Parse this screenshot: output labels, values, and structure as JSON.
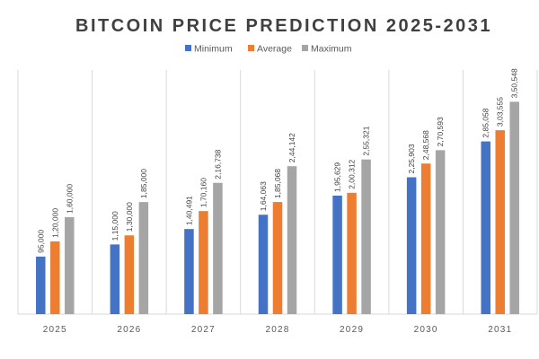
{
  "chart_data": {
    "type": "bar",
    "title": "BITCOIN PRICE PREDICTION 2025-2031",
    "categories": [
      "2025",
      "2026",
      "2027",
      "2028",
      "2029",
      "2030",
      "2031"
    ],
    "series": [
      {
        "name": "Minimum",
        "color": "#4472c4",
        "values": [
          95000,
          115000,
          140491,
          164063,
          195629,
          225903,
          285058
        ],
        "labels": [
          "95,000",
          "1,15,000",
          "1,40,491",
          "1,64,063",
          "1,95,629",
          "2,25,903",
          "2,85,058"
        ]
      },
      {
        "name": "Average",
        "color": "#ed7d31",
        "values": [
          120000,
          130000,
          170160,
          185068,
          200312,
          248568,
          303555
        ],
        "labels": [
          "1,20,000",
          "1,30,000",
          "1,70,160",
          "1,85,068",
          "2,00,312",
          "2,48,568",
          "3,03,555"
        ]
      },
      {
        "name": "Maximum",
        "color": "#a5a5a5",
        "values": [
          160000,
          185000,
          216738,
          244142,
          255321,
          270593,
          350548
        ],
        "labels": [
          "1,60,000",
          "1,85,000",
          "2,16,738",
          "2,44,142",
          "2,55,321",
          "2,70,593",
          "3,50,548"
        ]
      }
    ],
    "xlabel": "",
    "ylabel": "",
    "ylim": [
      0,
      400000
    ],
    "grid": false,
    "legend": "top-center"
  }
}
